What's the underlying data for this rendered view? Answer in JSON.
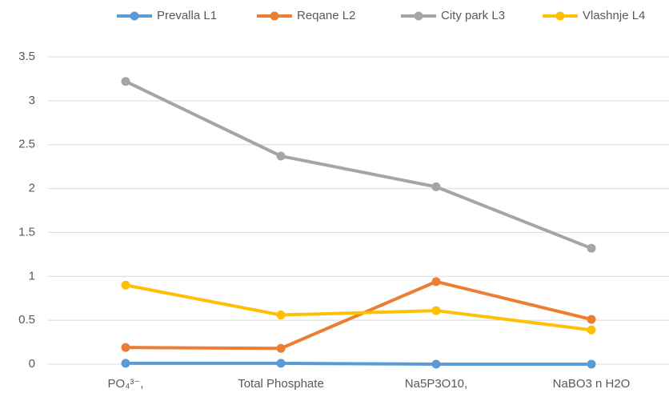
{
  "chart_data": {
    "type": "line",
    "categories": [
      "PO₄³⁻,",
      "Total Phosphate",
      "Na5P3O10,",
      "NaBO3  n H2O"
    ],
    "series": [
      {
        "name": "Prevalla L1",
        "color": "#5b9bd5",
        "values": [
          0.01,
          0.01,
          0,
          0
        ]
      },
      {
        "name": "Reqane L2",
        "color": "#ed7d31",
        "values": [
          0.19,
          0.18,
          0.94,
          0.51
        ]
      },
      {
        "name": "City park L3",
        "color": "#a5a5a5",
        "values": [
          3.22,
          2.37,
          2.02,
          1.32
        ]
      },
      {
        "name": "Vlashnje L4",
        "color": "#ffc000",
        "values": [
          0.9,
          0.56,
          0.61,
          0.39
        ]
      }
    ],
    "ylim": [
      0,
      3.5
    ],
    "yticks": [
      0,
      0.5,
      1,
      1.5,
      2,
      2.5,
      3,
      3.5
    ],
    "grid": true,
    "legend": "top"
  }
}
